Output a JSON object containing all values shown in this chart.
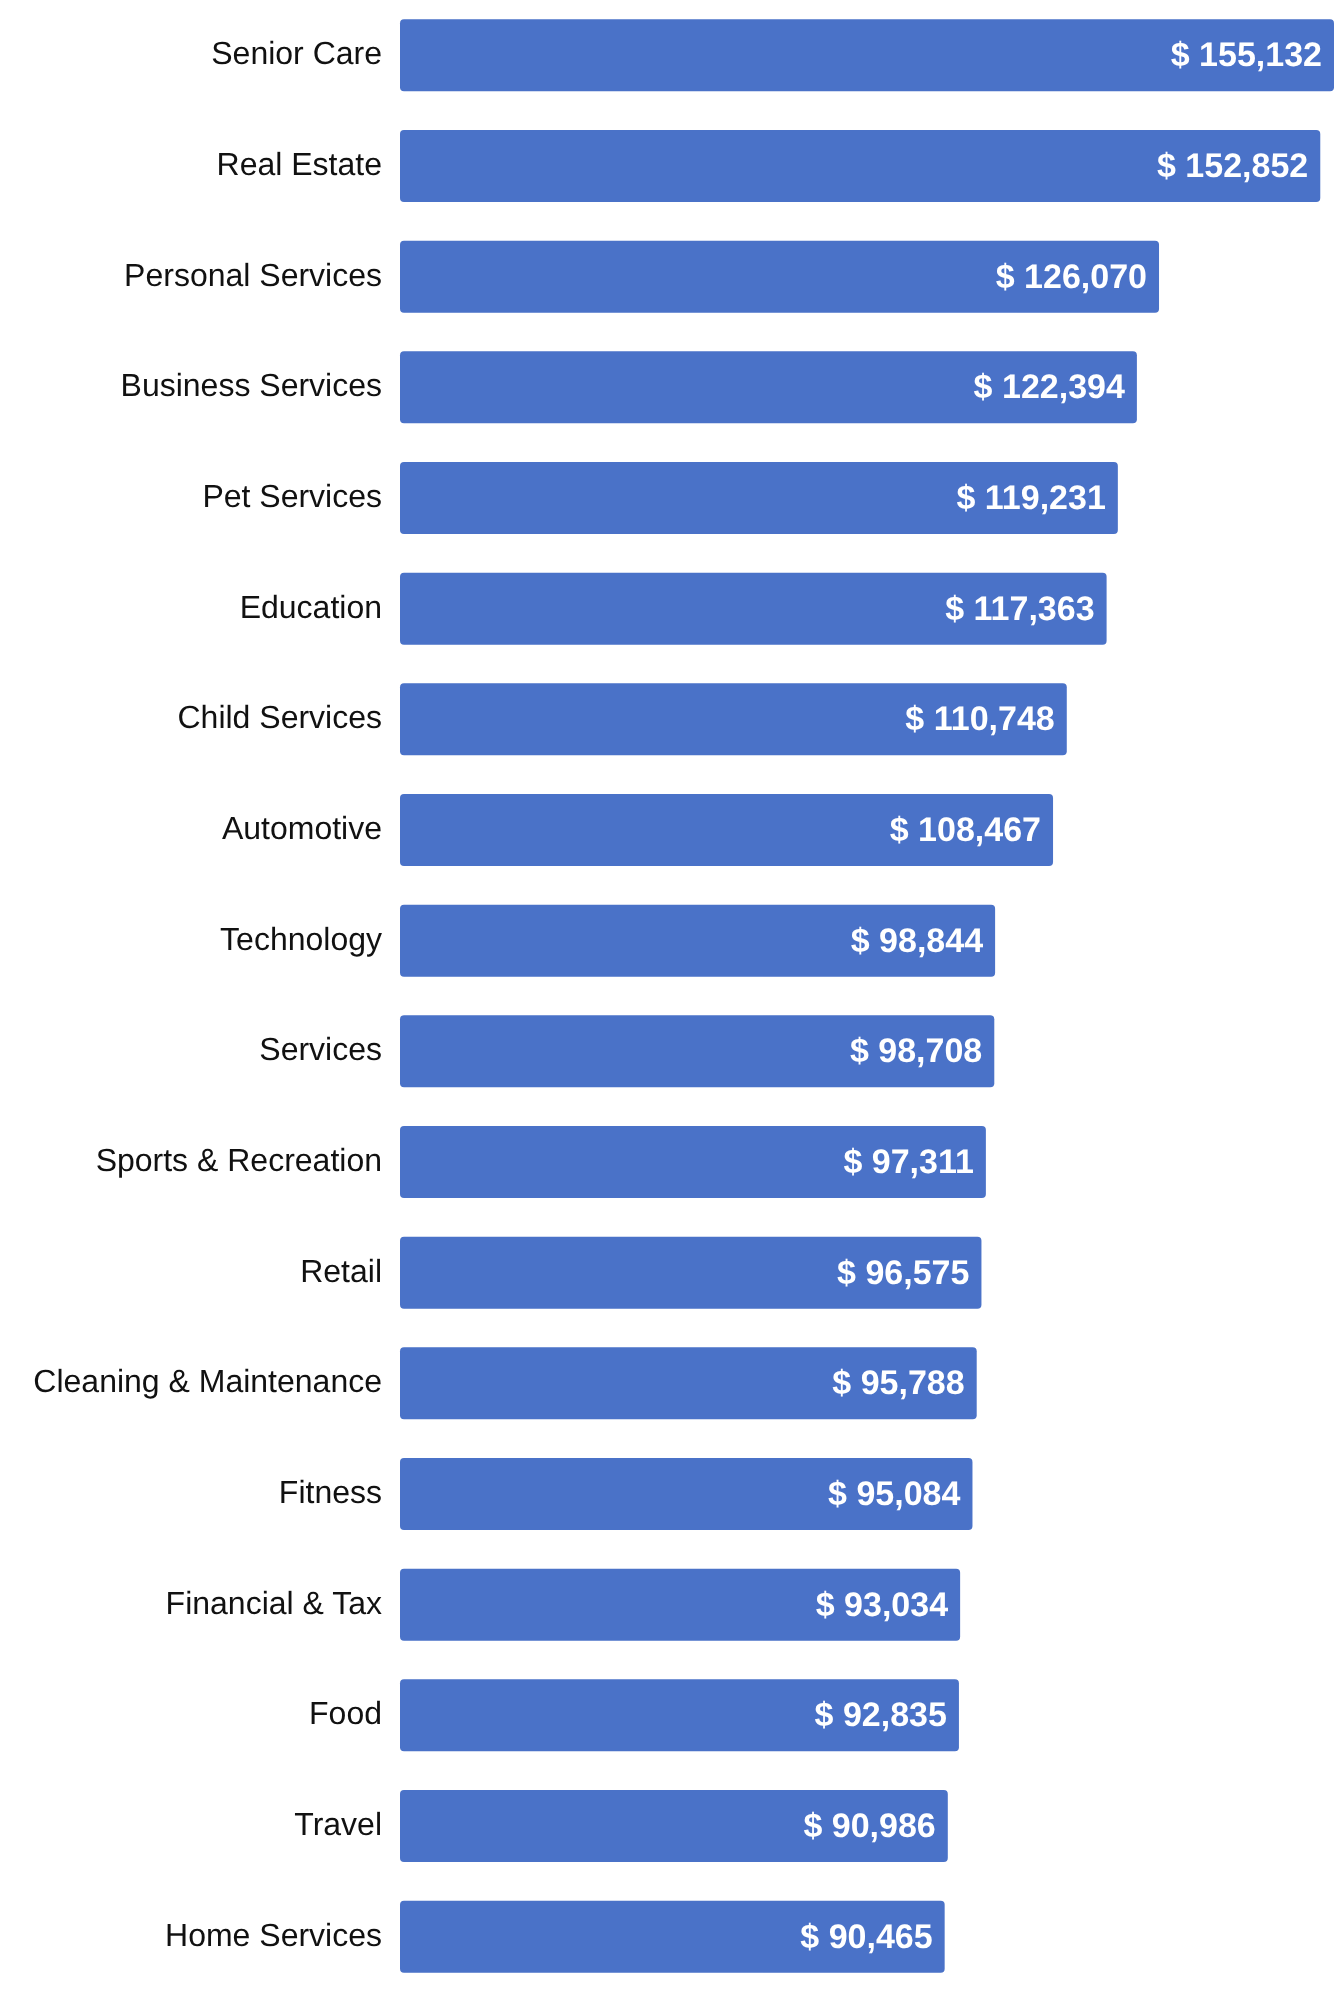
{
  "chart_data": {
    "type": "bar",
    "orientation": "horizontal",
    "categories": [
      "Senior Care",
      "Real Estate",
      "Personal Services",
      "Business Services",
      "Pet Services",
      "Education",
      "Child Services",
      "Automotive",
      "Technology",
      "Services",
      "Sports & Recreation",
      "Retail",
      "Cleaning & Maintenance",
      "Fitness",
      "Financial & Tax",
      "Food",
      "Travel",
      "Home Services"
    ],
    "values": [
      155132,
      152852,
      126070,
      122394,
      119231,
      117363,
      110748,
      108467,
      98844,
      98708,
      97311,
      96575,
      95788,
      95084,
      93034,
      92835,
      90986,
      90465
    ],
    "value_labels": [
      "$ 155,132",
      "$ 152,852",
      "$ 126,070",
      "$ 122,394",
      "$ 119,231",
      "$ 117,363",
      "$ 110,748",
      "$ 108,467",
      "$ 98,844",
      "$ 98,708",
      "$ 97,311",
      "$ 96,575",
      "$ 95,788",
      "$ 95,084",
      "$ 93,034",
      "$ 92,835",
      "$ 90,986",
      "$ 90,465"
    ],
    "color": "#4a72c8"
  }
}
